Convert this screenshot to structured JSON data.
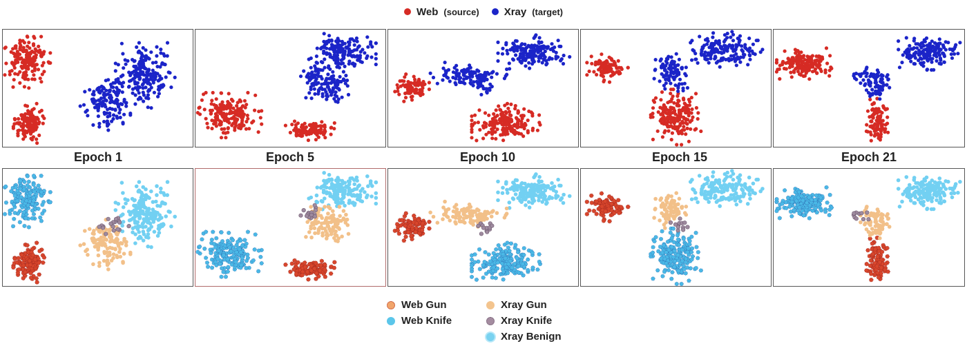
{
  "top_legend": {
    "items": [
      {
        "label": "Web",
        "sub": "(source)",
        "color": "#d62b24"
      },
      {
        "label": "Xray",
        "sub": "(target)",
        "color": "#1b24c8"
      }
    ]
  },
  "epochs": [
    "Epoch 1",
    "Epoch 5",
    "Epoch 10",
    "Epoch 15",
    "Epoch 21"
  ],
  "bottom_legend": {
    "items": [
      {
        "label": "Web Gun",
        "marker": "web-gun"
      },
      {
        "label": "Web Knife",
        "marker": "web-knife"
      },
      {
        "label": "Xray Gun",
        "marker": "xray-gun"
      },
      {
        "label": "Xray Knife",
        "marker": "xray-knife"
      },
      {
        "label": "Xray Benign",
        "marker": "xray-benign"
      }
    ]
  },
  "colors": {
    "web": "#d62b24",
    "xray": "#1b24c8",
    "web_gun": "#d8462c",
    "web_knife": "#4ab8e6",
    "xray_gun": "#f2c089",
    "xray_knife": "#9e8a9e",
    "xray_benign": "#72d0f2"
  },
  "chart_data": [
    {
      "type": "scatter",
      "epoch": "Epoch 1",
      "xlim": [
        0,
        1
      ],
      "ylim": [
        0,
        1
      ],
      "clusters": [
        {
          "group": "web",
          "subclass": "web_knife",
          "cx": 0.13,
          "cy": 0.73,
          "rx": 0.1,
          "ry": 0.19,
          "n": 170
        },
        {
          "group": "web",
          "subclass": "web_gun",
          "cx": 0.14,
          "cy": 0.2,
          "rx": 0.07,
          "ry": 0.14,
          "n": 130
        },
        {
          "group": "xray",
          "subclass": "xray_benign",
          "cx": 0.75,
          "cy": 0.62,
          "rx": 0.13,
          "ry": 0.24,
          "n": 200
        },
        {
          "group": "xray",
          "subclass": "xray_gun",
          "cx": 0.54,
          "cy": 0.35,
          "rx": 0.11,
          "ry": 0.18,
          "n": 120
        },
        {
          "group": "xray",
          "subclass": "xray_knife",
          "cx": 0.58,
          "cy": 0.52,
          "rx": 0.08,
          "ry": 0.1,
          "n": 18
        }
      ]
    },
    {
      "type": "scatter",
      "epoch": "Epoch 5",
      "xlim": [
        0,
        1
      ],
      "ylim": [
        0,
        1
      ],
      "clusters": [
        {
          "group": "web",
          "subclass": "web_knife",
          "cx": 0.18,
          "cy": 0.27,
          "rx": 0.14,
          "ry": 0.16,
          "n": 190
        },
        {
          "group": "web",
          "subclass": "web_gun",
          "cx": 0.6,
          "cy": 0.14,
          "rx": 0.11,
          "ry": 0.07,
          "n": 110
        },
        {
          "group": "xray",
          "subclass": "xray_benign",
          "cx": 0.77,
          "cy": 0.81,
          "rx": 0.15,
          "ry": 0.13,
          "n": 160
        },
        {
          "group": "xray",
          "subclass": "xray_gun",
          "cx": 0.7,
          "cy": 0.52,
          "rx": 0.1,
          "ry": 0.13,
          "n": 110
        },
        {
          "group": "xray",
          "subclass": "xray_knife",
          "cx": 0.61,
          "cy": 0.62,
          "rx": 0.05,
          "ry": 0.06,
          "n": 14
        }
      ]
    },
    {
      "type": "scatter",
      "epoch": "Epoch 10",
      "xlim": [
        0,
        1
      ],
      "ylim": [
        0,
        1
      ],
      "clusters": [
        {
          "group": "web",
          "subclass": "web_gun",
          "cx": 0.12,
          "cy": 0.5,
          "rx": 0.08,
          "ry": 0.1,
          "n": 90
        },
        {
          "group": "web",
          "subclass": "web_knife",
          "cx": 0.62,
          "cy": 0.2,
          "rx": 0.15,
          "ry": 0.14,
          "n": 190
        },
        {
          "group": "xray",
          "subclass": "xray_benign",
          "cx": 0.77,
          "cy": 0.81,
          "rx": 0.16,
          "ry": 0.12,
          "n": 160
        },
        {
          "group": "xray",
          "subclass": "xray_gun",
          "cx": 0.42,
          "cy": 0.6,
          "rx": 0.17,
          "ry": 0.1,
          "n": 110
        },
        {
          "group": "xray",
          "subclass": "xray_knife",
          "cx": 0.52,
          "cy": 0.5,
          "rx": 0.05,
          "ry": 0.05,
          "n": 12
        }
      ]
    },
    {
      "type": "scatter",
      "epoch": "Epoch 15",
      "xlim": [
        0,
        1
      ],
      "ylim": [
        0,
        1
      ],
      "clusters": [
        {
          "group": "web",
          "subclass": "web_gun",
          "cx": 0.14,
          "cy": 0.67,
          "rx": 0.09,
          "ry": 0.1,
          "n": 90
        },
        {
          "group": "web",
          "subclass": "web_knife",
          "cx": 0.5,
          "cy": 0.25,
          "rx": 0.11,
          "ry": 0.2,
          "n": 200
        },
        {
          "group": "xray",
          "subclass": "xray_benign",
          "cx": 0.74,
          "cy": 0.83,
          "rx": 0.18,
          "ry": 0.13,
          "n": 160
        },
        {
          "group": "xray",
          "subclass": "xray_gun",
          "cx": 0.47,
          "cy": 0.65,
          "rx": 0.07,
          "ry": 0.13,
          "n": 80
        },
        {
          "group": "xray",
          "subclass": "xray_knife",
          "cx": 0.53,
          "cy": 0.52,
          "rx": 0.05,
          "ry": 0.06,
          "n": 12
        }
      ]
    },
    {
      "type": "scatter",
      "epoch": "Epoch 21",
      "xlim": [
        0,
        1
      ],
      "ylim": [
        0,
        1
      ],
      "clusters": [
        {
          "group": "web",
          "subclass": "web_knife",
          "cx": 0.16,
          "cy": 0.71,
          "rx": 0.12,
          "ry": 0.11,
          "n": 180
        },
        {
          "group": "web",
          "subclass": "web_gun",
          "cx": 0.54,
          "cy": 0.22,
          "rx": 0.05,
          "ry": 0.16,
          "n": 100
        },
        {
          "group": "xray",
          "subclass": "xray_benign",
          "cx": 0.81,
          "cy": 0.8,
          "rx": 0.14,
          "ry": 0.12,
          "n": 160
        },
        {
          "group": "xray",
          "subclass": "xray_gun",
          "cx": 0.54,
          "cy": 0.55,
          "rx": 0.07,
          "ry": 0.13,
          "n": 80
        },
        {
          "group": "xray",
          "subclass": "xray_knife",
          "cx": 0.45,
          "cy": 0.6,
          "rx": 0.04,
          "ry": 0.05,
          "n": 10
        }
      ]
    }
  ]
}
